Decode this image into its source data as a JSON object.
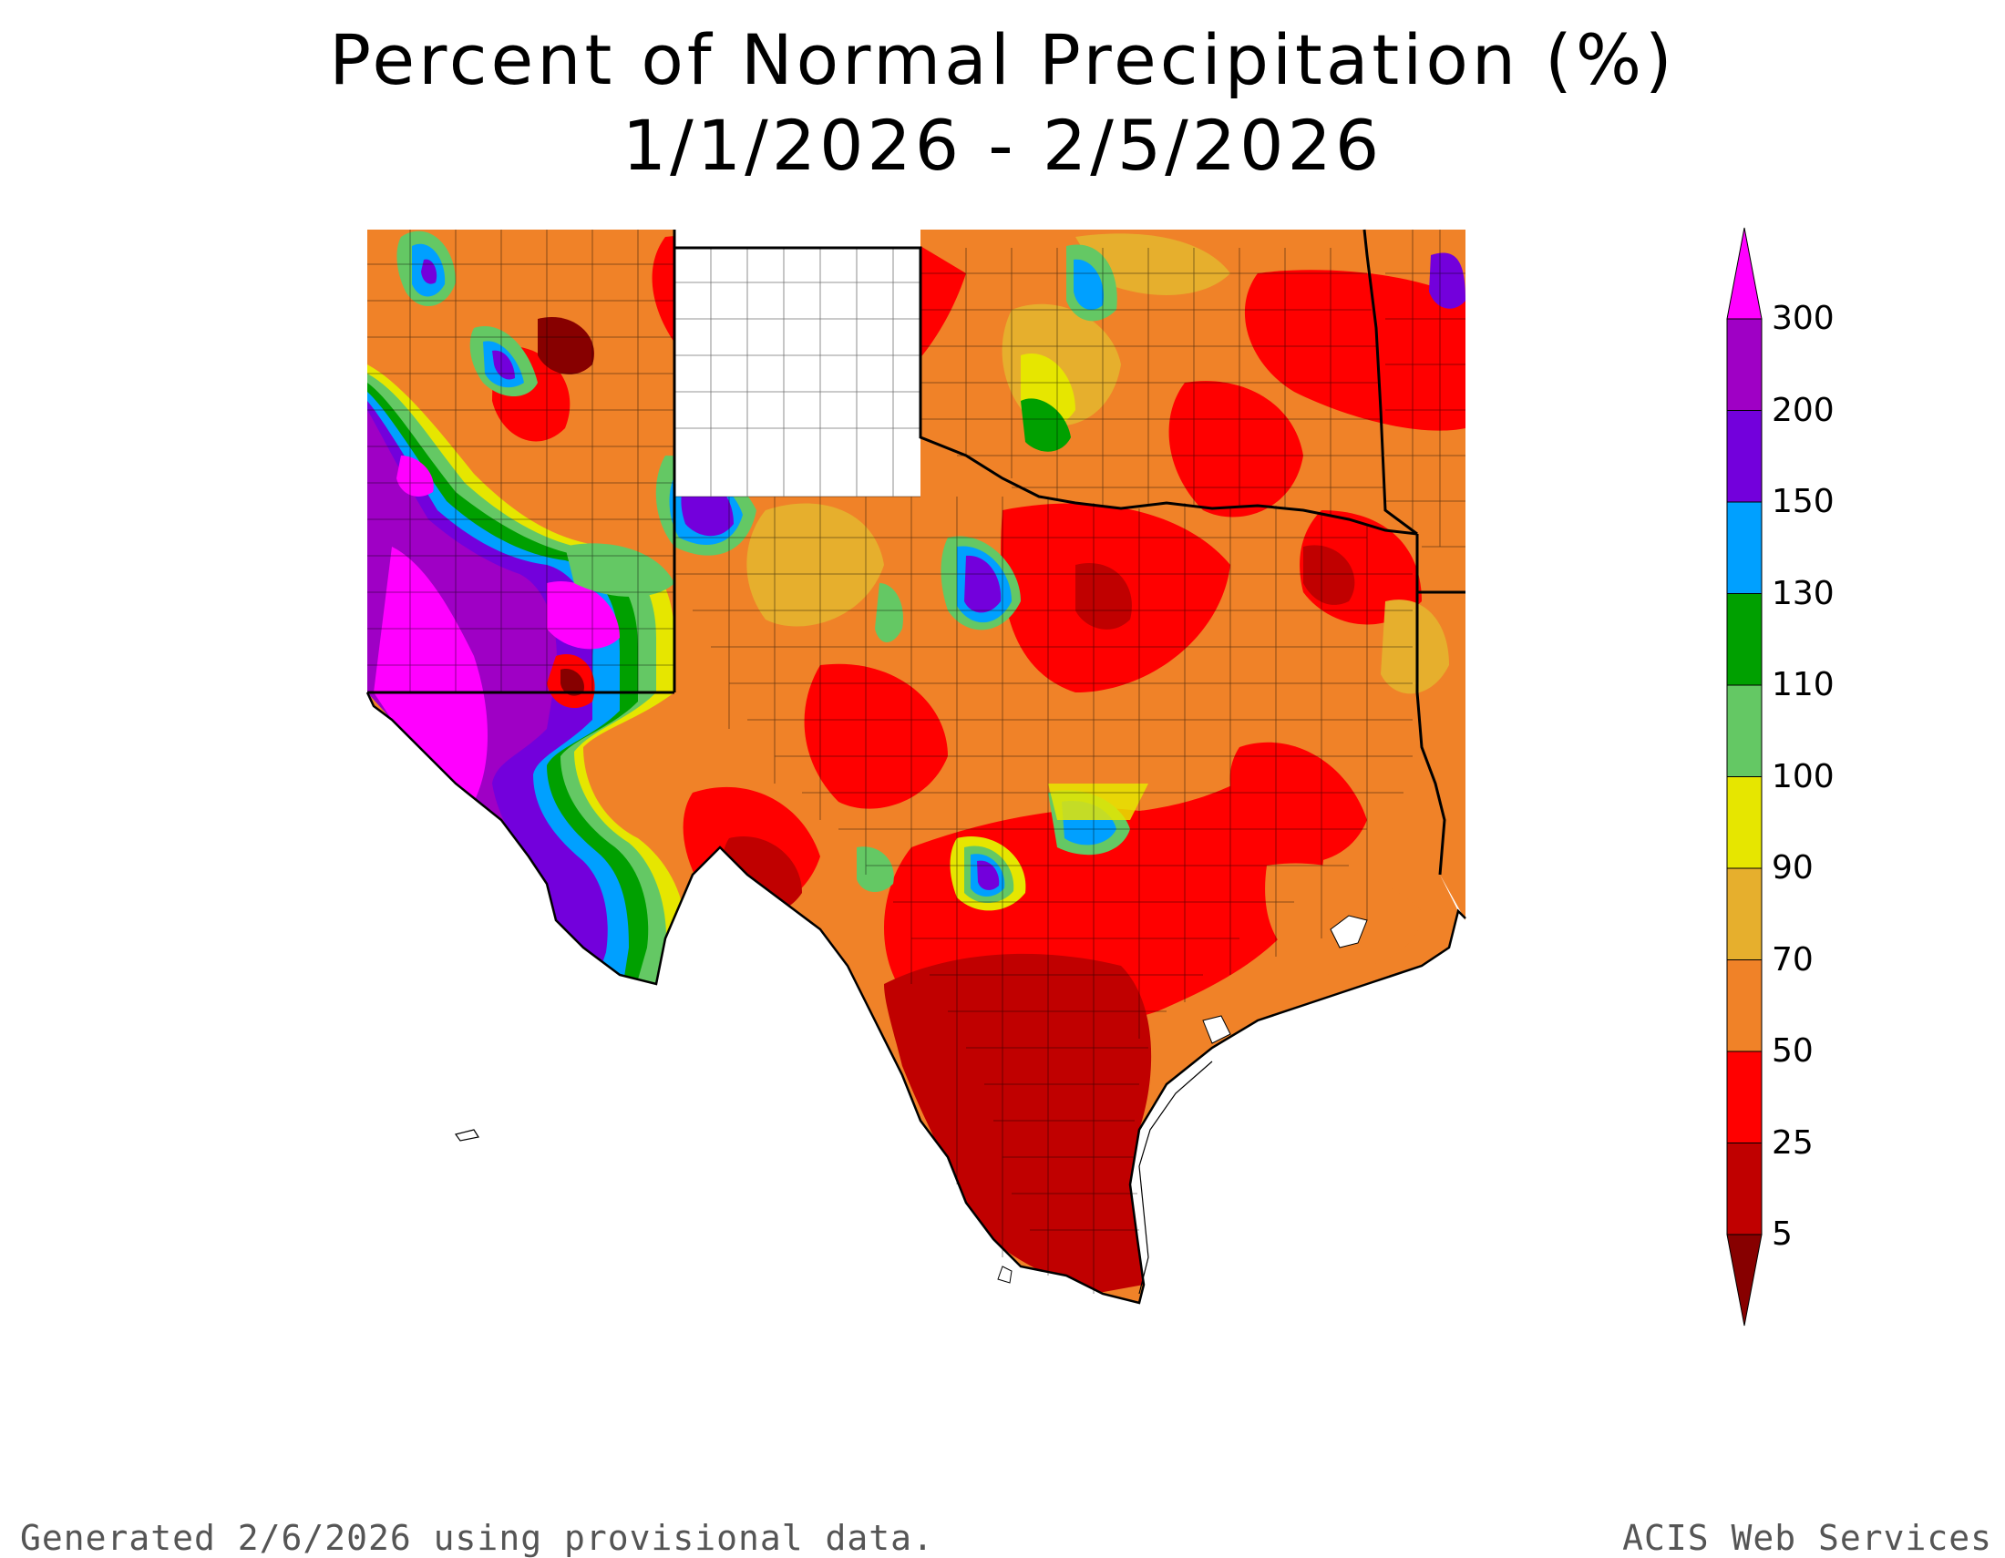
{
  "title": "Percent of Normal Precipitation (%)",
  "subtitle": "1/1/2026 - 2/5/2026",
  "legend": {
    "labels": [
      "300",
      "200",
      "150",
      "130",
      "110",
      "100",
      "90",
      "70",
      "50",
      "25",
      "5"
    ],
    "colors": [
      "#ff00ff",
      "#9f00c5",
      "#7300dc",
      "#00a0ff",
      "#00a000",
      "#64c864",
      "#e6e600",
      "#e6af2d",
      "#f08228",
      "#ff0000",
      "#c00000",
      "#870000"
    ]
  },
  "footer": {
    "left": "Generated 2/6/2026  using provisional data.",
    "right": "ACIS Web Services"
  }
}
